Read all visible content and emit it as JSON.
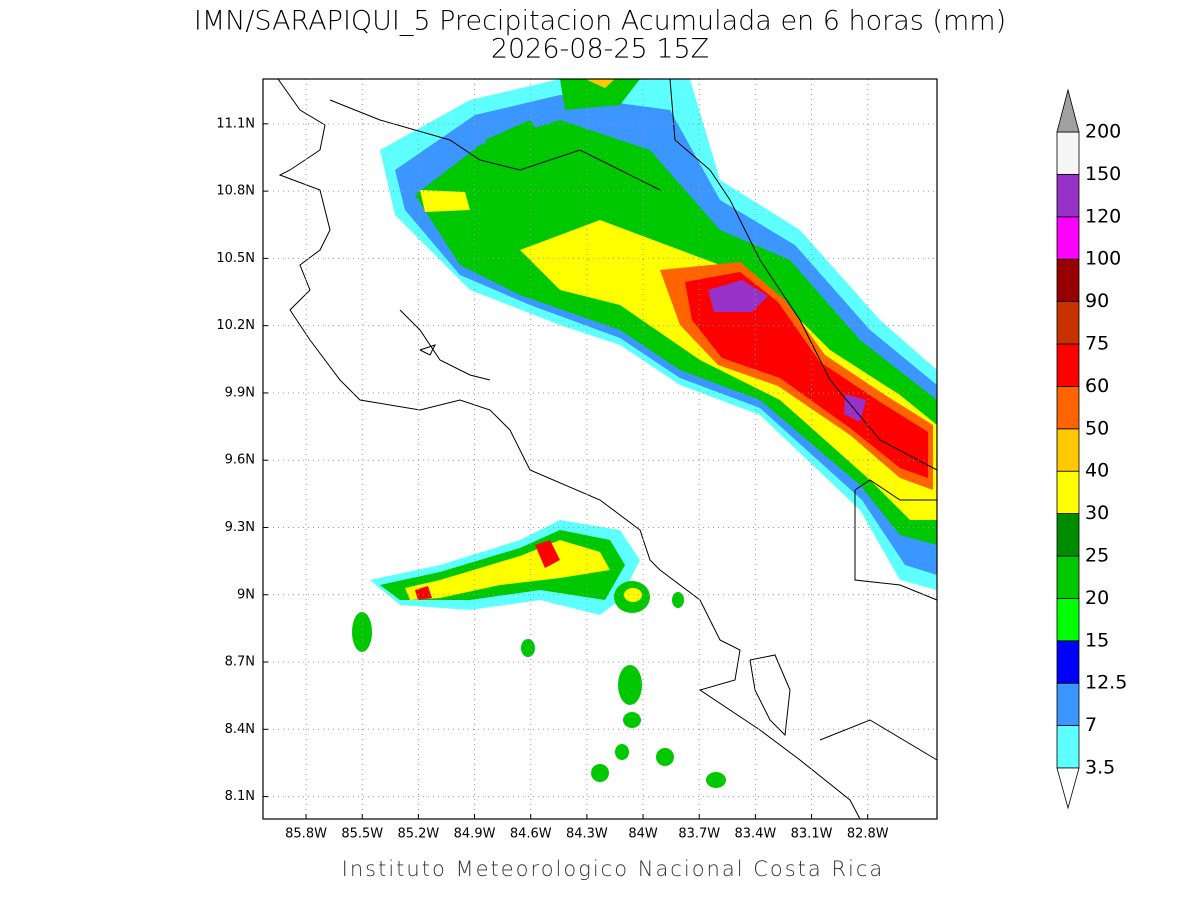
{
  "title": "IMN/SARAPIQUI_5 Precipitacion Acumulada en 6 horas (mm)",
  "subtitle": "2026-08-25 15Z",
  "footer": "Instituto Meteorologico Nacional Costa Rica",
  "map": {
    "lon_range": [
      -86.03,
      -82.43
    ],
    "lat_range": [
      8.0,
      11.3
    ],
    "lon_ticks": [
      {
        "value": -85.8,
        "label": "85.8W"
      },
      {
        "value": -85.5,
        "label": "85.5W"
      },
      {
        "value": -85.2,
        "label": "85.2W"
      },
      {
        "value": -84.9,
        "label": "84.9W"
      },
      {
        "value": -84.6,
        "label": "84.6W"
      },
      {
        "value": -84.3,
        "label": "84.3W"
      },
      {
        "value": -84.0,
        "label": "84W"
      },
      {
        "value": -83.7,
        "label": "83.7W"
      },
      {
        "value": -83.4,
        "label": "83.4W"
      },
      {
        "value": -83.1,
        "label": "83.1W"
      },
      {
        "value": -82.8,
        "label": "82.8W"
      }
    ],
    "lat_ticks": [
      {
        "value": 8.1,
        "label": "8.1N"
      },
      {
        "value": 8.4,
        "label": "8.4N"
      },
      {
        "value": 8.7,
        "label": "8.7N"
      },
      {
        "value": 9.0,
        "label": "9N"
      },
      {
        "value": 9.3,
        "label": "9.3N"
      },
      {
        "value": 9.6,
        "label": "9.6N"
      },
      {
        "value": 9.9,
        "label": "9.9N"
      },
      {
        "value": 10.2,
        "label": "10.2N"
      },
      {
        "value": 10.5,
        "label": "10.5N"
      },
      {
        "value": 10.8,
        "label": "10.8N"
      },
      {
        "value": 11.1,
        "label": "11.1N"
      }
    ]
  },
  "colorbar": {
    "levels": [
      3.5,
      7,
      12.5,
      15,
      20,
      25,
      30,
      40,
      50,
      60,
      75,
      90,
      100,
      120,
      150,
      200
    ],
    "colors": [
      "#5effff",
      "#3c96ff",
      "#0000ff",
      "#00ff00",
      "#00c800",
      "#008c00",
      "#ffff00",
      "#ffc800",
      "#ff6400",
      "#ff0000",
      "#c83200",
      "#960000",
      "#ff00ff",
      "#9632c8",
      "#f5f5f5"
    ],
    "under_color": "#ffffff",
    "over_color": "#a0a0a0"
  }
}
